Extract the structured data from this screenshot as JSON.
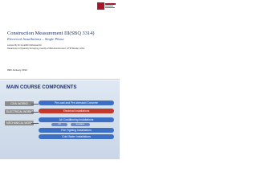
{
  "slide1": {
    "title": "Construction Measurement III(SBQ 3314)",
    "subtitle": "Electrical Installations – Single Phase",
    "lecturer": "Lecture By Dr Ismail/Dr Mohamad Ali",
    "department": "Department of Quantity Surveying, Faculty of Built Environment, UTM Skudai, Johor",
    "date": "09th January 2014"
  },
  "slide2": {
    "heading": "MAIN COURSE COMPONENTS",
    "rows": [
      {
        "label": "CIVIL WORKS",
        "items": [
          "Pre-cast and Pre-stressed Concrete"
        ]
      },
      {
        "label": "ELECTRICAL WORKS",
        "items": [
          "Electrical Installations"
        ]
      },
      {
        "label": "MECHANICAL WORKS",
        "items": [
          "Air Conditioning Installations",
          "Lift",
          "Escalator",
          "Fire Fighting Installations",
          "Cold Water Installations"
        ]
      }
    ]
  }
}
